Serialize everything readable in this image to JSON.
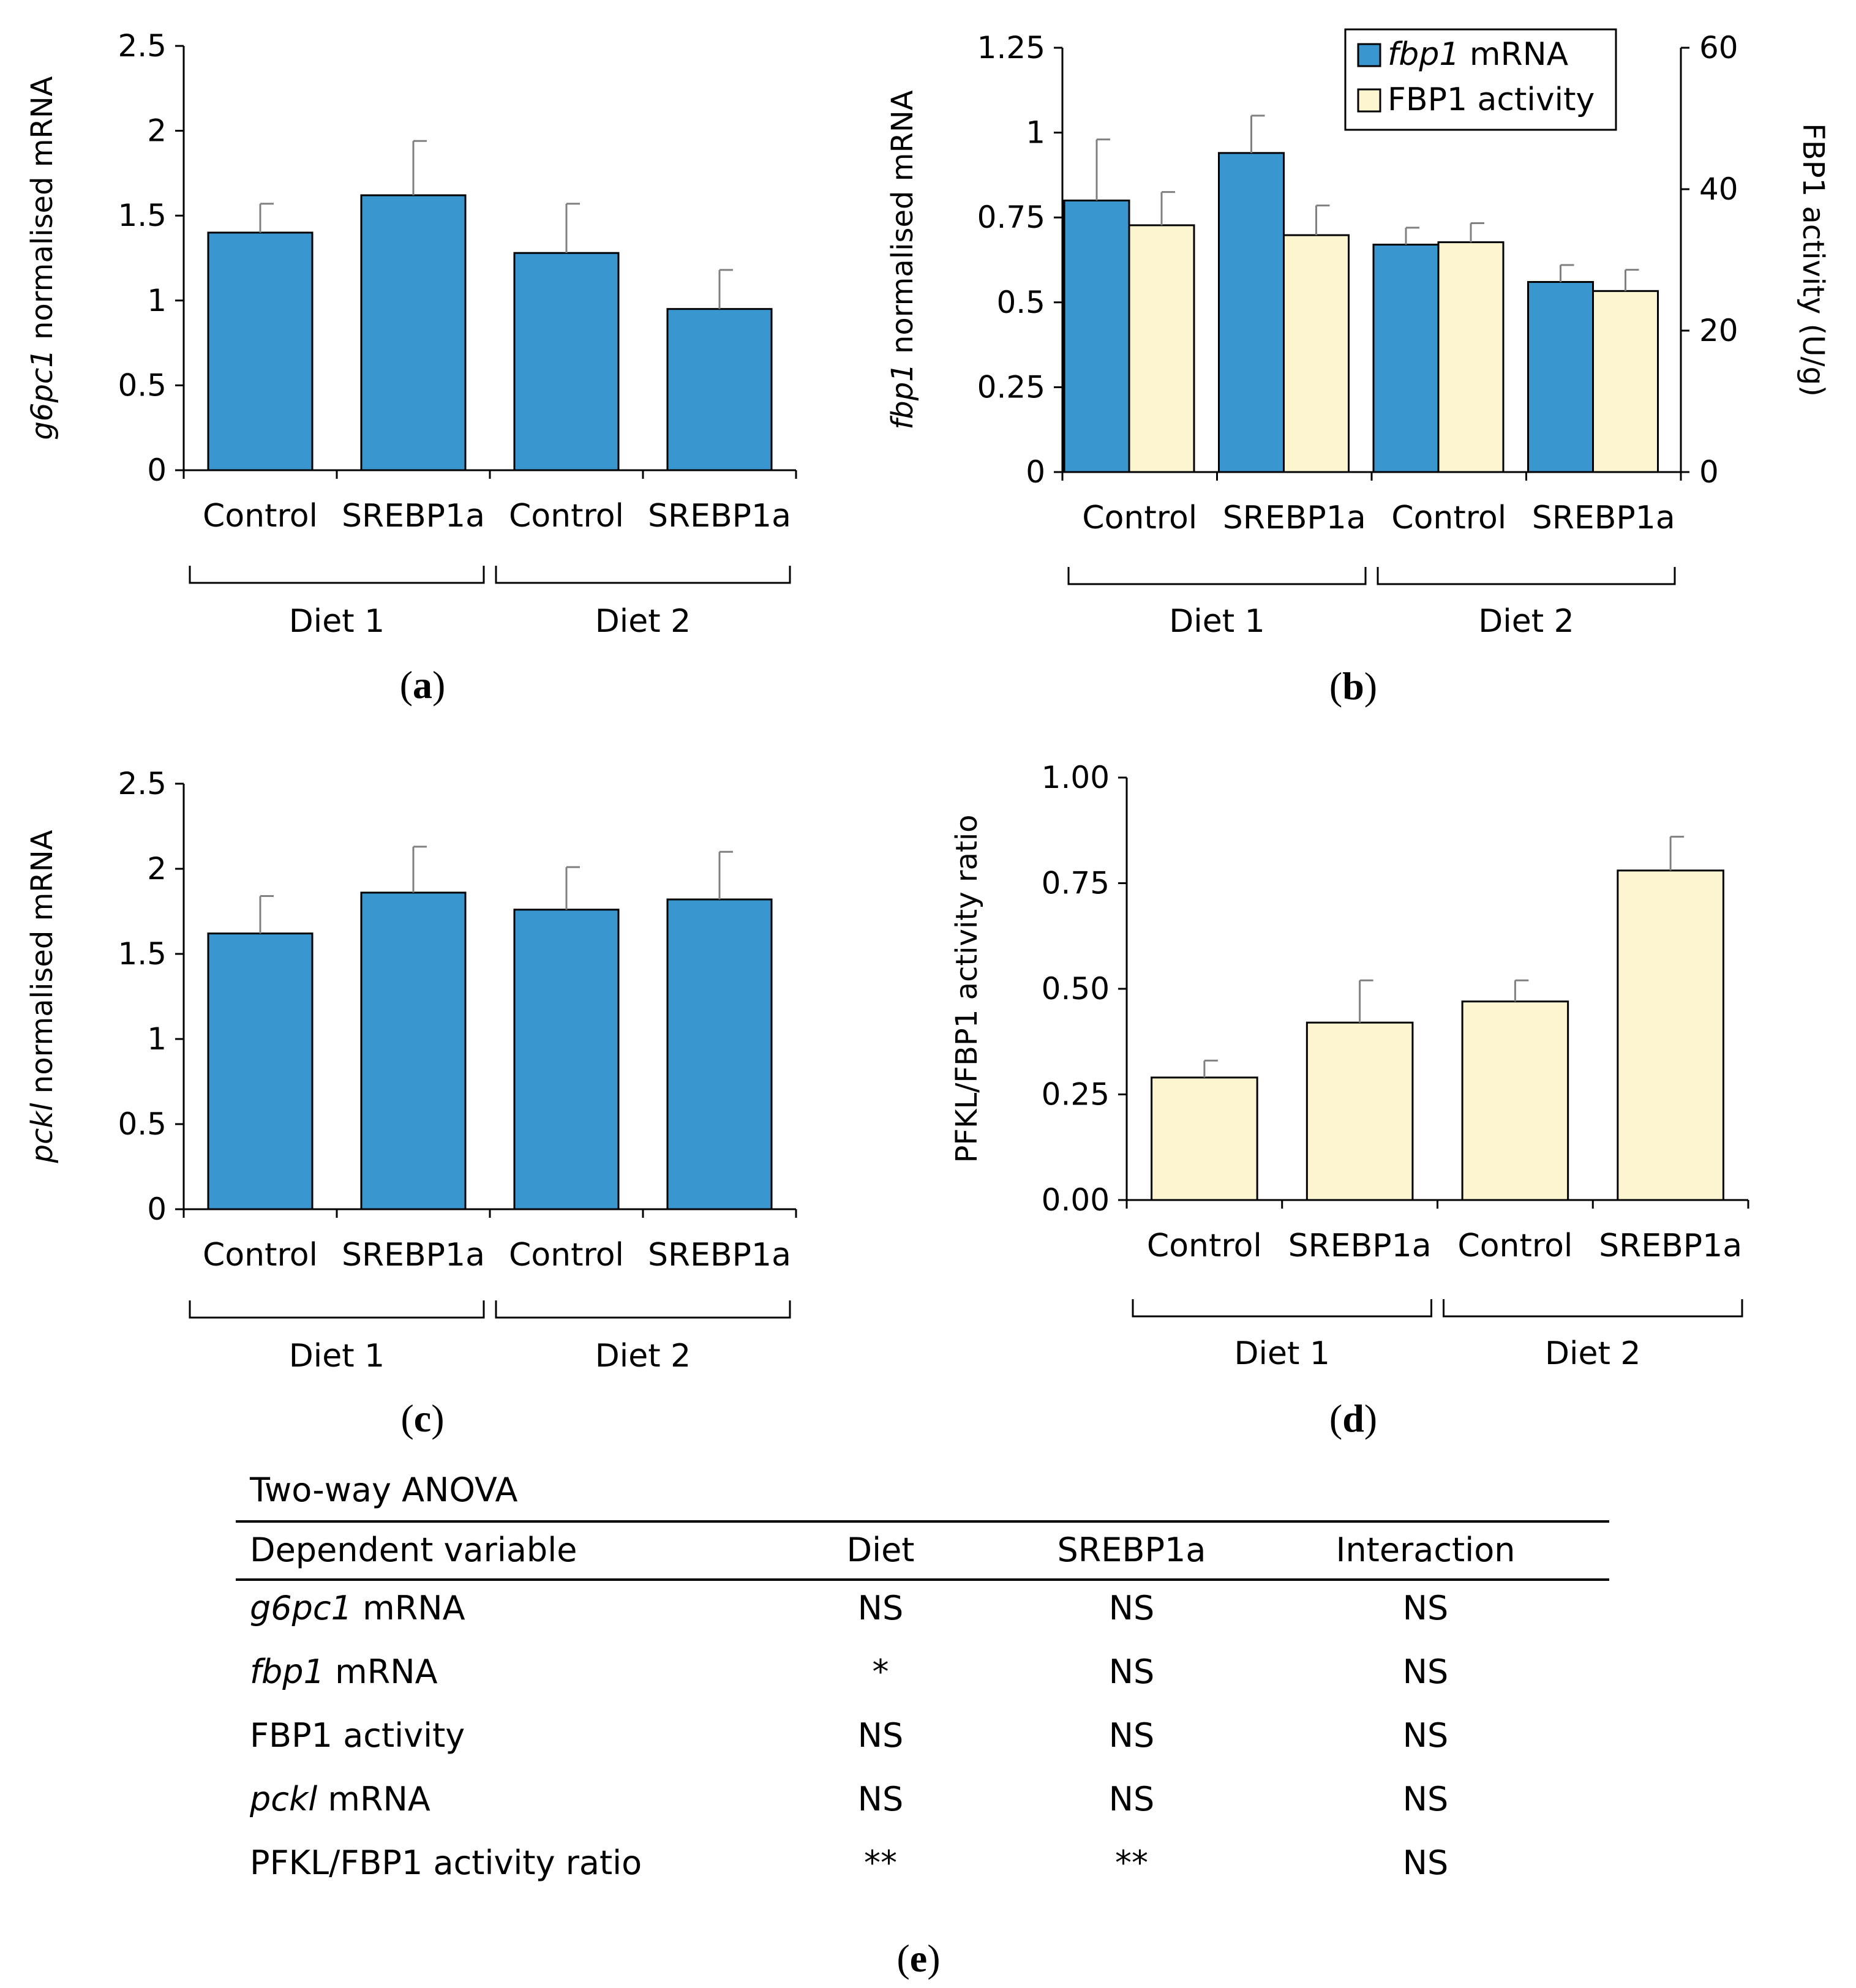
{
  "colors": {
    "blue": "#3a96cf",
    "cream": "#fdf5cf",
    "axis": "#000000",
    "err": "#808080"
  },
  "chart_data": [
    {
      "id": "a",
      "panel_label": "a",
      "type": "bar",
      "categories": [
        "Control",
        "SREBP1a",
        "Control",
        "SREBP1a"
      ],
      "groups": [
        "Diet 1",
        "Diet 2"
      ],
      "series": [
        {
          "name": "g6pc1 mRNA",
          "color": "blue",
          "values": [
            1.4,
            1.62,
            1.28,
            0.95
          ],
          "errors": [
            0.17,
            0.32,
            0.29,
            0.23
          ]
        }
      ],
      "ylim": [
        0,
        2.5
      ],
      "yticks": [
        "0",
        "0.5",
        "1",
        "1.5",
        "2",
        "2.5"
      ],
      "ylabel_italic": "g6pc1",
      "ylabel_rest": " normalised mRNA"
    },
    {
      "id": "b",
      "panel_label": "b",
      "type": "bar",
      "categories": [
        "Control",
        "SREBP1a",
        "Control",
        "SREBP1a"
      ],
      "groups": [
        "Diet 1",
        "Diet 2"
      ],
      "series": [
        {
          "name": "fbp1 mRNA",
          "color": "blue",
          "axis": "left",
          "values": [
            0.8,
            0.94,
            0.67,
            0.56
          ],
          "errors": [
            0.18,
            0.11,
            0.05,
            0.05
          ]
        },
        {
          "name": "FBP1 activity",
          "color": "cream",
          "axis": "right",
          "values": [
            34.9,
            33.5,
            32.5,
            25.6
          ],
          "errors": [
            4.7,
            4.2,
            2.7,
            3.0
          ]
        }
      ],
      "ylim": [
        0,
        1.25
      ],
      "yticks": [
        "0",
        "0.25",
        "0.5",
        "0.75",
        "1",
        "1.25"
      ],
      "ylabel_italic": "fbp1",
      "ylabel_rest": " normalised mRNA",
      "y2lim": [
        0,
        60
      ],
      "y2ticks": [
        "0",
        "20",
        "40",
        "60"
      ],
      "y2label": "FBP1 activity (U/g)",
      "legend": [
        {
          "italic": "fbp1",
          "text": " mRNA"
        },
        {
          "italic": "",
          "text": "FBP1 activity"
        }
      ],
      "legend_position": "top-right"
    },
    {
      "id": "c",
      "panel_label": "c",
      "type": "bar",
      "categories": [
        "Control",
        "SREBP1a",
        "Control",
        "SREBP1a"
      ],
      "groups": [
        "Diet 1",
        "Diet 2"
      ],
      "series": [
        {
          "name": "pckl mRNA",
          "color": "blue",
          "values": [
            1.62,
            1.86,
            1.76,
            1.82
          ],
          "errors": [
            0.22,
            0.27,
            0.25,
            0.28
          ]
        }
      ],
      "ylim": [
        0,
        2.5
      ],
      "yticks": [
        "0",
        "0.5",
        "1",
        "1.5",
        "2",
        "2.5"
      ],
      "ylabel_italic": "pckl",
      "ylabel_rest": " normalised mRNA"
    },
    {
      "id": "d",
      "panel_label": "d",
      "type": "bar",
      "categories": [
        "Control",
        "SREBP1a",
        "Control",
        "SREBP1a"
      ],
      "groups": [
        "Diet 1",
        "Diet 2"
      ],
      "series": [
        {
          "name": "PFKL/FBP1 activity ratio",
          "color": "cream",
          "values": [
            0.29,
            0.42,
            0.47,
            0.78
          ],
          "errors": [
            0.04,
            0.1,
            0.05,
            0.08
          ]
        }
      ],
      "ylim": [
        0,
        1.0
      ],
      "yticks": [
        "0.00",
        "0.25",
        "0.50",
        "0.75",
        "1.00"
      ],
      "ylabel_italic": "",
      "ylabel_rest": "PFKL/FBP1 activity ratio"
    }
  ],
  "anova": {
    "panel_label": "e",
    "title": "Two-way ANOVA",
    "headers": [
      "Dependent variable",
      "Diet",
      "SREBP1a",
      "Interaction"
    ],
    "rows": [
      {
        "italic": "g6pc1",
        "rest": " mRNA",
        "diet": "NS",
        "srebp": "NS",
        "interaction": "NS"
      },
      {
        "italic": "fbp1",
        "rest": " mRNA",
        "diet": "*",
        "srebp": "NS",
        "interaction": "NS"
      },
      {
        "italic": "",
        "rest": "FBP1 activity",
        "diet": "NS",
        "srebp": "NS",
        "interaction": "NS"
      },
      {
        "italic": "pckl",
        "rest": " mRNA",
        "diet": "NS",
        "srebp": "NS",
        "interaction": "NS"
      },
      {
        "italic": "",
        "rest": "PFKL/FBP1 activity ratio",
        "diet": "**",
        "srebp": "**",
        "interaction": "NS"
      }
    ]
  }
}
